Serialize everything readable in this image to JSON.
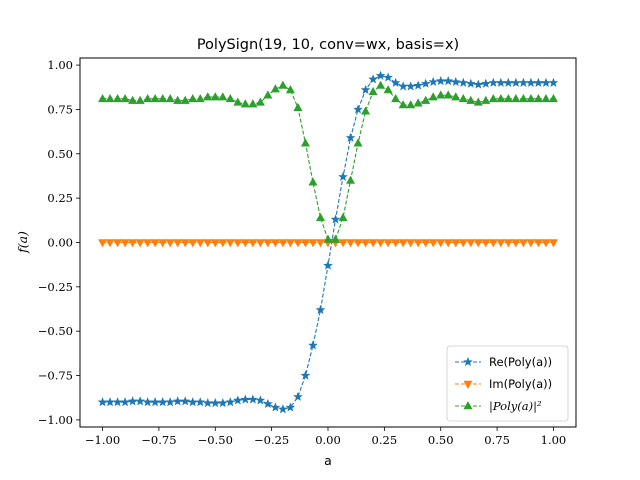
{
  "chart_data": {
    "type": "line",
    "title": "PolySign(19, 10, conv=wx, basis=x)",
    "xlabel": "a",
    "ylabel": "f(a)",
    "xlim": [
      -1.1,
      1.1
    ],
    "ylim": [
      -1.04,
      1.04
    ],
    "x_ticks": [
      -1.0,
      -0.75,
      -0.5,
      -0.25,
      0.0,
      0.25,
      0.5,
      0.75,
      1.0
    ],
    "x_tick_labels": [
      "−1.00",
      "−0.75",
      "−0.50",
      "−0.25",
      "0.00",
      "0.25",
      "0.50",
      "0.75",
      "1.00"
    ],
    "y_ticks": [
      -1.0,
      -0.75,
      -0.5,
      -0.25,
      0.0,
      0.25,
      0.5,
      0.75,
      1.0
    ],
    "y_tick_labels": [
      "−1.00",
      "−0.75",
      "−0.50",
      "−0.25",
      "0.00",
      "0.25",
      "0.50",
      "0.75",
      "1.00"
    ],
    "grid": false,
    "legend_position": "lower-right",
    "x": [
      -1.0,
      -0.9667,
      -0.9333,
      -0.9,
      -0.8667,
      -0.8333,
      -0.8,
      -0.7667,
      -0.7333,
      -0.7,
      -0.6667,
      -0.6333,
      -0.6,
      -0.5667,
      -0.5333,
      -0.5,
      -0.4667,
      -0.4333,
      -0.4,
      -0.3667,
      -0.3333,
      -0.3,
      -0.2667,
      -0.2333,
      -0.2,
      -0.1667,
      -0.1333,
      -0.1,
      -0.0667,
      -0.0333,
      0.0,
      0.0333,
      0.0667,
      0.1,
      0.1333,
      0.1667,
      0.2,
      0.2333,
      0.2667,
      0.3,
      0.3333,
      0.3667,
      0.4,
      0.4333,
      0.4667,
      0.5,
      0.5333,
      0.5667,
      0.6,
      0.6333,
      0.6667,
      0.7,
      0.7333,
      0.7667,
      0.8,
      0.8333,
      0.8667,
      0.9,
      0.9333,
      0.9667,
      1.0
    ],
    "series": [
      {
        "name": "Re(Poly(a))",
        "color": "#1f77b4",
        "marker": "star",
        "linestyle": "dashed",
        "values": [
          -0.9,
          -0.9,
          -0.9,
          -0.9,
          -0.895,
          -0.895,
          -0.9,
          -0.9,
          -0.9,
          -0.9,
          -0.895,
          -0.895,
          -0.9,
          -0.9,
          -0.905,
          -0.905,
          -0.905,
          -0.9,
          -0.89,
          -0.885,
          -0.885,
          -0.89,
          -0.91,
          -0.93,
          -0.94,
          -0.93,
          -0.87,
          -0.75,
          -0.58,
          -0.38,
          -0.13,
          0.13,
          0.37,
          0.59,
          0.75,
          0.86,
          0.92,
          0.94,
          0.93,
          0.9,
          0.88,
          0.88,
          0.885,
          0.895,
          0.905,
          0.91,
          0.91,
          0.905,
          0.9,
          0.895,
          0.89,
          0.895,
          0.9,
          0.9,
          0.9,
          0.9,
          0.9,
          0.9,
          0.9,
          0.9,
          0.9
        ]
      },
      {
        "name": "Im(Poly(a))",
        "color": "#ff7f0e",
        "marker": "triangle-down",
        "linestyle": "dashed",
        "values": [
          0,
          0,
          0,
          0,
          0,
          0,
          0,
          0,
          0,
          0,
          0,
          0,
          0,
          0,
          0,
          0,
          0,
          0,
          0,
          0,
          0,
          0,
          0,
          0,
          0,
          0,
          0,
          0,
          0,
          0,
          0,
          0,
          0,
          0,
          0,
          0,
          0,
          0,
          0,
          0,
          0,
          0,
          0,
          0,
          0,
          0,
          0,
          0,
          0,
          0,
          0,
          0,
          0,
          0,
          0,
          0,
          0,
          0,
          0,
          0,
          0
        ]
      },
      {
        "name": "|Poly(a)|²",
        "color": "#2ca02c",
        "marker": "triangle-up",
        "linestyle": "dashed",
        "values": [
          0.81,
          0.81,
          0.81,
          0.81,
          0.8,
          0.8,
          0.81,
          0.81,
          0.81,
          0.81,
          0.8,
          0.8,
          0.81,
          0.81,
          0.82,
          0.82,
          0.82,
          0.81,
          0.79,
          0.78,
          0.78,
          0.79,
          0.83,
          0.865,
          0.885,
          0.86,
          0.76,
          0.56,
          0.34,
          0.14,
          0.017,
          0.017,
          0.14,
          0.35,
          0.56,
          0.74,
          0.85,
          0.885,
          0.86,
          0.81,
          0.775,
          0.775,
          0.785,
          0.8,
          0.82,
          0.83,
          0.83,
          0.82,
          0.81,
          0.8,
          0.79,
          0.8,
          0.81,
          0.81,
          0.81,
          0.81,
          0.81,
          0.81,
          0.81,
          0.81,
          0.81
        ]
      }
    ]
  }
}
